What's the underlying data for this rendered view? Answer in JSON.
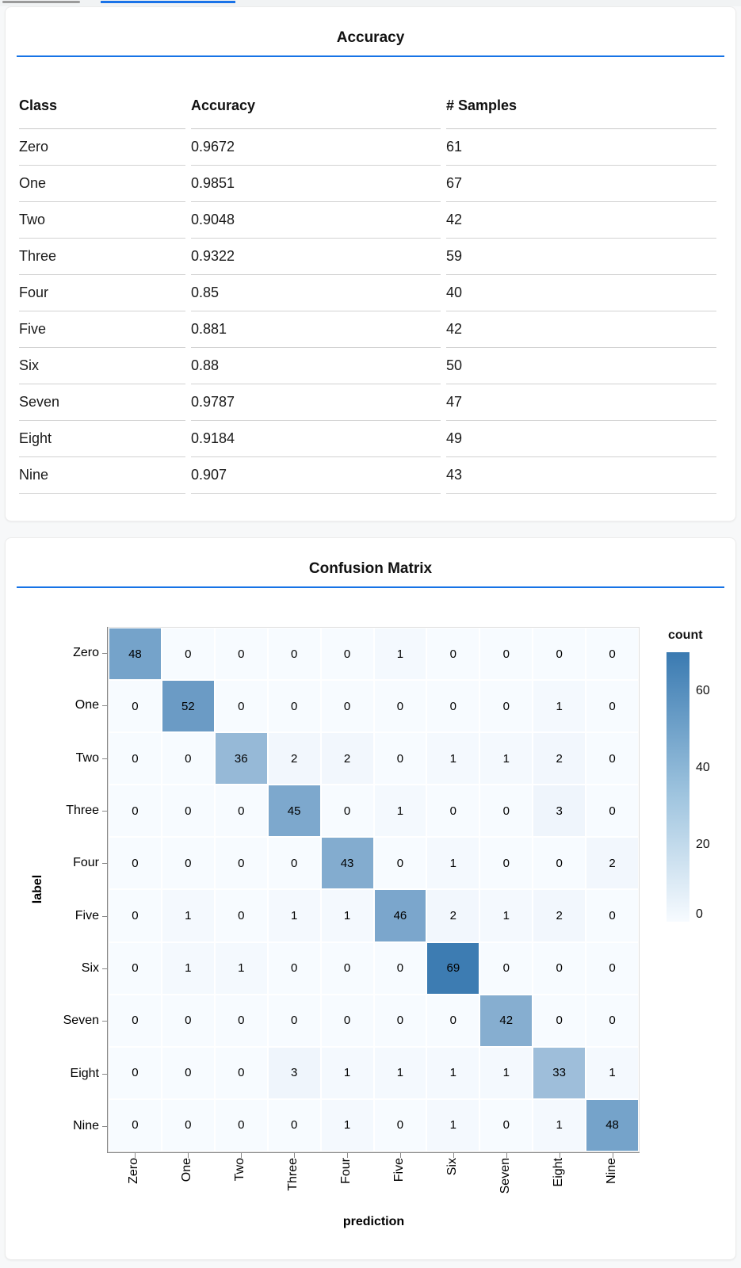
{
  "top_bars": {
    "gray_color": "#9b9b9b",
    "blue_color": "#1a73e8"
  },
  "accent_rule_color": "#1673e6",
  "chart_data": [
    {
      "type": "table",
      "title": "Accuracy",
      "columns": [
        "Class",
        "Accuracy",
        "# Samples"
      ],
      "rows": [
        [
          "Zero",
          "0.9672",
          "61"
        ],
        [
          "One",
          "0.9851",
          "67"
        ],
        [
          "Two",
          "0.9048",
          "42"
        ],
        [
          "Three",
          "0.9322",
          "59"
        ],
        [
          "Four",
          "0.85",
          "40"
        ],
        [
          "Five",
          "0.881",
          "42"
        ],
        [
          "Six",
          "0.88",
          "50"
        ],
        [
          "Seven",
          "0.9787",
          "47"
        ],
        [
          "Eight",
          "0.9184",
          "49"
        ],
        [
          "Nine",
          "0.907",
          "43"
        ]
      ]
    },
    {
      "type": "heatmap",
      "title": "Confusion Matrix",
      "xlabel": "prediction",
      "ylabel": "label",
      "x_categories": [
        "Zero",
        "One",
        "Two",
        "Three",
        "Four",
        "Five",
        "Six",
        "Seven",
        "Eight",
        "Nine"
      ],
      "y_categories": [
        "Zero",
        "One",
        "Two",
        "Three",
        "Four",
        "Five",
        "Six",
        "Seven",
        "Eight",
        "Nine"
      ],
      "values": [
        [
          48,
          0,
          0,
          0,
          0,
          1,
          0,
          0,
          0,
          0
        ],
        [
          0,
          52,
          0,
          0,
          0,
          0,
          0,
          0,
          1,
          0
        ],
        [
          0,
          0,
          36,
          2,
          2,
          0,
          1,
          1,
          2,
          0
        ],
        [
          0,
          0,
          0,
          45,
          0,
          1,
          0,
          0,
          3,
          0
        ],
        [
          0,
          0,
          0,
          0,
          43,
          0,
          1,
          0,
          0,
          2
        ],
        [
          0,
          1,
          0,
          1,
          1,
          46,
          2,
          1,
          2,
          0
        ],
        [
          0,
          1,
          1,
          0,
          0,
          0,
          69,
          0,
          0,
          0
        ],
        [
          0,
          0,
          0,
          0,
          0,
          0,
          0,
          42,
          0,
          0
        ],
        [
          0,
          0,
          0,
          3,
          1,
          1,
          1,
          1,
          33,
          1
        ],
        [
          0,
          0,
          0,
          0,
          1,
          0,
          1,
          0,
          1,
          48
        ]
      ],
      "legend": {
        "title": "count",
        "ticks": [
          60,
          40,
          20,
          0
        ],
        "domain": [
          0,
          70
        ],
        "low_color": "#f7fbff",
        "high_color": "#3a7ab1"
      },
      "grid": false,
      "legend_position": "right"
    }
  ]
}
